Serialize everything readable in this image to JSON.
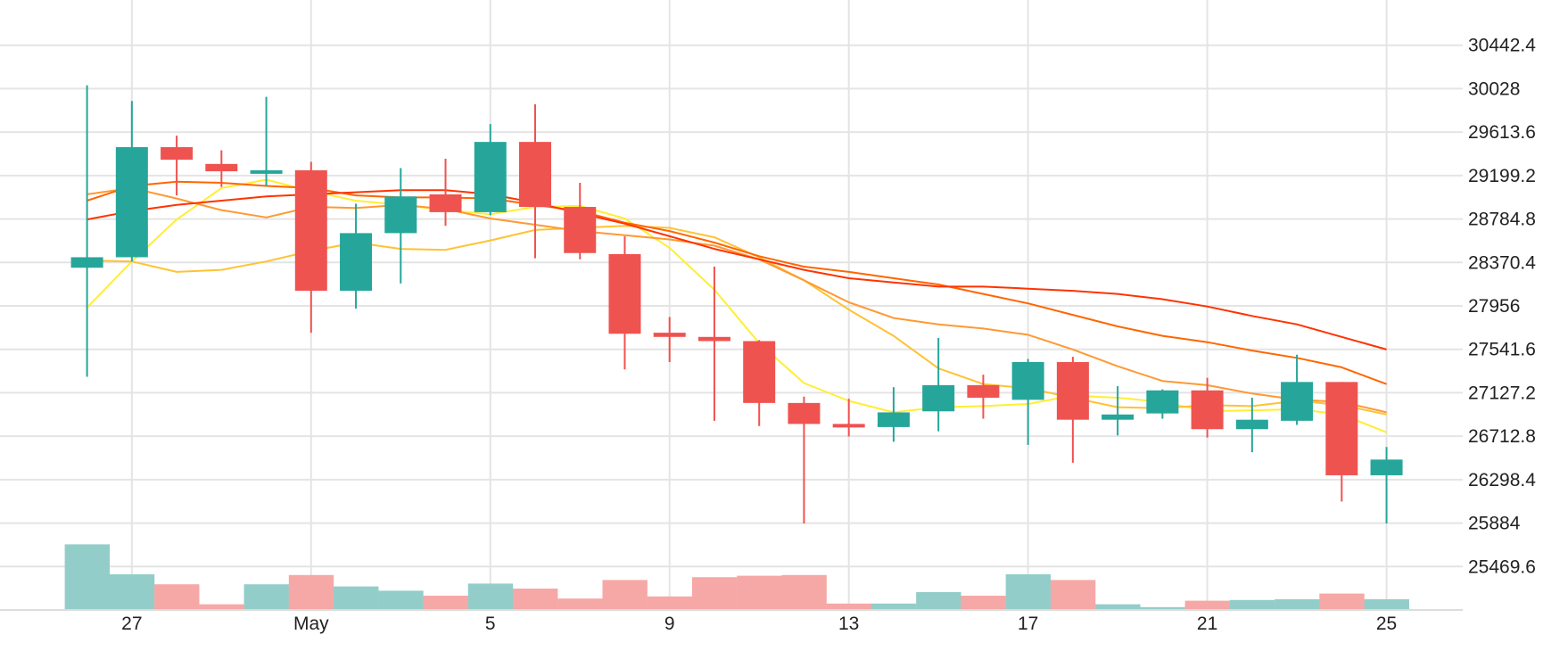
{
  "chart_data": {
    "type": "candlestick",
    "title": "",
    "xlabel": "",
    "ylabel": "",
    "ylim": [
      25055.2,
      30856.8
    ],
    "y_ticks": [
      "25469.6",
      "25884",
      "26298.4",
      "26712.8",
      "27127.2",
      "27541.6",
      "27956",
      "28370.4",
      "28784.8",
      "29199.2",
      "29613.6",
      "30028",
      "30442.4"
    ],
    "x_tick_labels": [
      {
        "day": 27,
        "label": "27"
      },
      {
        "day": 31,
        "label": "May"
      },
      {
        "day": 35,
        "label": "5"
      },
      {
        "day": 39,
        "label": "9"
      },
      {
        "day": 43,
        "label": "13"
      },
      {
        "day": 47,
        "label": "17"
      },
      {
        "day": 51,
        "label": "21"
      },
      {
        "day": 55,
        "label": "25"
      }
    ],
    "days": [
      26,
      27,
      28,
      29,
      30,
      31,
      32,
      33,
      34,
      35,
      36,
      37,
      38,
      39,
      40,
      41,
      42,
      43,
      44,
      45,
      46,
      47,
      48,
      49,
      50,
      51,
      52,
      53,
      54,
      55
    ],
    "candles": [
      {
        "o": 28320,
        "h": 30060,
        "l": 27280,
        "c": 28420
      },
      {
        "o": 28420,
        "h": 29910,
        "l": 28380,
        "c": 29470
      },
      {
        "o": 29470,
        "h": 29580,
        "l": 29010,
        "c": 29350
      },
      {
        "o": 29310,
        "h": 29440,
        "l": 29090,
        "c": 29240
      },
      {
        "o": 29240,
        "h": 29950,
        "l": 29100,
        "c": 29250
      },
      {
        "o": 29250,
        "h": 29330,
        "l": 27700,
        "c": 28100
      },
      {
        "o": 28100,
        "h": 28930,
        "l": 27930,
        "c": 28650
      },
      {
        "o": 28650,
        "h": 29270,
        "l": 28170,
        "c": 29000
      },
      {
        "o": 29020,
        "h": 29360,
        "l": 28720,
        "c": 28850
      },
      {
        "o": 28850,
        "h": 29690,
        "l": 28820,
        "c": 29520
      },
      {
        "o": 29520,
        "h": 29880,
        "l": 28410,
        "c": 28900
      },
      {
        "o": 28900,
        "h": 29130,
        "l": 28400,
        "c": 28460
      },
      {
        "o": 28450,
        "h": 28620,
        "l": 27350,
        "c": 27690
      },
      {
        "o": 27700,
        "h": 27850,
        "l": 27420,
        "c": 27660
      },
      {
        "o": 27660,
        "h": 28330,
        "l": 26860,
        "c": 27620
      },
      {
        "o": 27620,
        "h": 27630,
        "l": 26810,
        "c": 27030
      },
      {
        "o": 27030,
        "h": 27090,
        "l": 25880,
        "c": 26830
      },
      {
        "o": 26830,
        "h": 27070,
        "l": 26710,
        "c": 26800
      },
      {
        "o": 26800,
        "h": 27180,
        "l": 26660,
        "c": 26940
      },
      {
        "o": 26950,
        "h": 27650,
        "l": 26760,
        "c": 27200
      },
      {
        "o": 27200,
        "h": 27300,
        "l": 26880,
        "c": 27080
      },
      {
        "o": 27060,
        "h": 27450,
        "l": 26630,
        "c": 27420
      },
      {
        "o": 27420,
        "h": 27470,
        "l": 26460,
        "c": 26870
      },
      {
        "o": 26870,
        "h": 27190,
        "l": 26720,
        "c": 26920
      },
      {
        "o": 26930,
        "h": 27160,
        "l": 26880,
        "c": 27150
      },
      {
        "o": 27150,
        "h": 27270,
        "l": 26700,
        "c": 26780
      },
      {
        "o": 26780,
        "h": 27080,
        "l": 26560,
        "c": 26870
      },
      {
        "o": 26860,
        "h": 27490,
        "l": 26820,
        "c": 27230
      },
      {
        "o": 27230,
        "h": 27230,
        "l": 26090,
        "c": 26340
      },
      {
        "o": 26340,
        "h": 26610,
        "l": 25880,
        "c": 26490
      }
    ],
    "volume_ratios": [
      0.92,
      0.5,
      0.36,
      0.08,
      0.36,
      0.49,
      0.33,
      0.27,
      0.2,
      0.37,
      0.3,
      0.16,
      0.42,
      0.19,
      0.46,
      0.48,
      0.49,
      0.09,
      0.09,
      0.25,
      0.2,
      0.5,
      0.42,
      0.08,
      0.04,
      0.13,
      0.14,
      0.15,
      0.23,
      0.15
    ],
    "moving_averages": [
      {
        "color": "#ffee33",
        "values": [
          27940,
          28380,
          28780,
          29080,
          29160,
          29050,
          28960,
          28920,
          28870,
          28830,
          28900,
          28910,
          28790,
          28510,
          28110,
          27600,
          27220,
          27050,
          26940,
          26990,
          27000,
          27020,
          27100,
          27080,
          27040,
          26950,
          26960,
          26970,
          26920,
          26750
        ]
      },
      {
        "color": "#ffc233",
        "values": [
          28390,
          28380,
          28280,
          28300,
          28380,
          28480,
          28560,
          28500,
          28490,
          28580,
          28680,
          28700,
          28720,
          28700,
          28610,
          28420,
          28200,
          27920,
          27670,
          27360,
          27210,
          27170,
          27080,
          26990,
          26980,
          27010,
          27000,
          27050,
          27010,
          26920
        ]
      },
      {
        "color": "#ff9933",
        "values": [
          29020,
          29080,
          28980,
          28870,
          28800,
          28900,
          28890,
          28920,
          28880,
          28790,
          28730,
          28670,
          28630,
          28590,
          28530,
          28400,
          28200,
          27990,
          27840,
          27780,
          27740,
          27680,
          27540,
          27380,
          27240,
          27200,
          27120,
          27060,
          27040,
          26940
        ]
      },
      {
        "color": "#ff6600",
        "values": [
          28960,
          29100,
          29140,
          29130,
          29100,
          29080,
          29010,
          28990,
          28990,
          28980,
          28920,
          28860,
          28750,
          28670,
          28560,
          28430,
          28330,
          28280,
          28220,
          28160,
          28070,
          27980,
          27870,
          27760,
          27670,
          27610,
          27530,
          27460,
          27370,
          27210
        ]
      },
      {
        "color": "#ff3300",
        "values": [
          28780,
          28860,
          28920,
          28960,
          29000,
          29020,
          29040,
          29060,
          29060,
          29020,
          28940,
          28840,
          28740,
          28620,
          28500,
          28400,
          28300,
          28220,
          28180,
          28140,
          28140,
          28120,
          28100,
          28070,
          28020,
          27950,
          27860,
          27780,
          27660,
          27540
        ]
      }
    ],
    "colors": {
      "up": "#26a69a",
      "down": "#ef5350",
      "up_volume": "#93cdc9",
      "down_volume": "#f6a8a6",
      "grid": "#e4e4e4"
    },
    "grid": true
  }
}
